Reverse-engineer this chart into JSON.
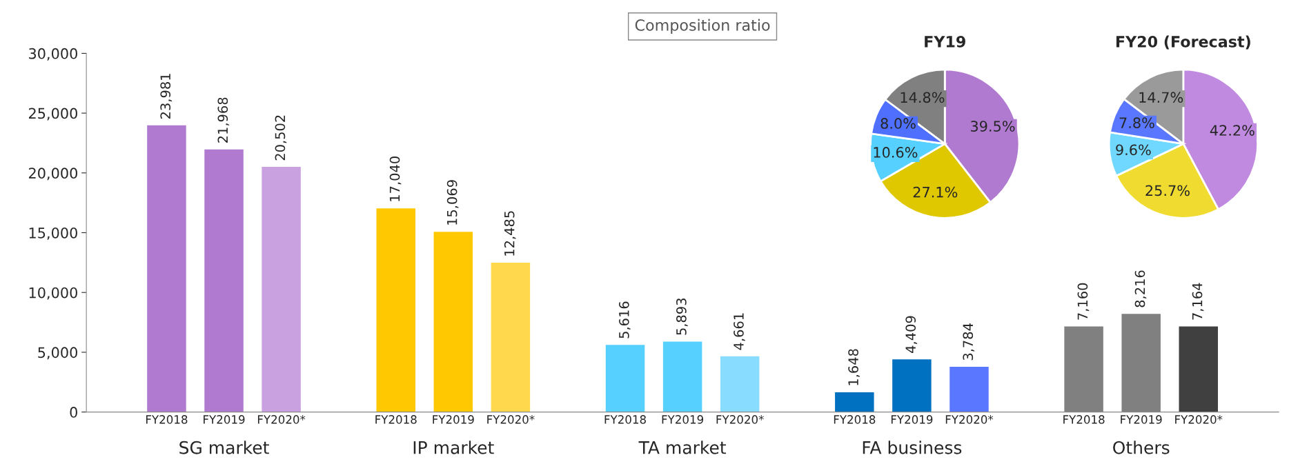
{
  "chart_data": [
    {
      "type": "bar",
      "categories": [
        "SG market",
        "IP market",
        "TA market",
        "FA business",
        "Others"
      ],
      "series": [
        {
          "name": "FY2018",
          "colors": [
            "#b07ad0",
            "#ffc800",
            "#55d0ff",
            "#0070c0",
            "#808080"
          ],
          "values": [
            23981,
            17040,
            5616,
            1648,
            7160
          ],
          "value_labels": [
            "23,981",
            "17,040",
            "5,616",
            "1,648",
            "7,160"
          ]
        },
        {
          "name": "FY2019",
          "colors": [
            "#b07ad0",
            "#ffc800",
            "#55d0ff",
            "#0070c0",
            "#808080"
          ],
          "values": [
            21968,
            15069,
            5893,
            4409,
            8216
          ],
          "value_labels": [
            "21,968",
            "15,069",
            "5,893",
            "4,409",
            "8,216"
          ]
        },
        {
          "name": "FY2020*",
          "colors": [
            "#c9a0e0",
            "#ffd84d",
            "#88dcff",
            "#5a78ff",
            "#404040"
          ],
          "values": [
            20502,
            12485,
            4661,
            3784,
            7164
          ],
          "value_labels": [
            "20,502",
            "12,485",
            "4,661",
            "3,784",
            "7,164"
          ]
        }
      ],
      "ylim": [
        0,
        30000
      ],
      "yticks": [
        0,
        {
          "value": 5000,
          "label": "5,000"
        },
        {
          "value": 10000,
          "label": "10,000"
        },
        {
          "value": 15000,
          "label": "15,000"
        },
        {
          "value": 20000,
          "label": "20,000"
        },
        {
          "value": 25000,
          "label": "25,000"
        },
        {
          "value": 30000,
          "label": "30,000"
        }
      ],
      "grid": false,
      "legend": false,
      "annotations": [
        "Composition ratio"
      ]
    },
    {
      "type": "pie",
      "title": "FY19",
      "categories": [
        null,
        null,
        null,
        null,
        null
      ],
      "values": [
        39.5,
        27.1,
        10.6,
        8.0,
        14.8
      ],
      "colors": [
        "#b07ad0",
        "#e0c800",
        "#55d0ff",
        "#4f6fff",
        "#808080"
      ],
      "value_labels": [
        "39.5%",
        "27.1%",
        "10.6%",
        "8.0%",
        "14.8%"
      ]
    },
    {
      "type": "pie",
      "title": "FY20 (Forecast)",
      "categories": [
        null,
        null,
        null,
        null,
        null
      ],
      "values": [
        42.2,
        25.7,
        9.6,
        7.8,
        14.7
      ],
      "colors": [
        "#c08ae0",
        "#f0dc30",
        "#70d8ff",
        "#5a78ff",
        "#9a9a9a"
      ],
      "value_labels": [
        "42.2%",
        "25.7%",
        "9.6%",
        "7.8%",
        "14.7%"
      ]
    }
  ]
}
